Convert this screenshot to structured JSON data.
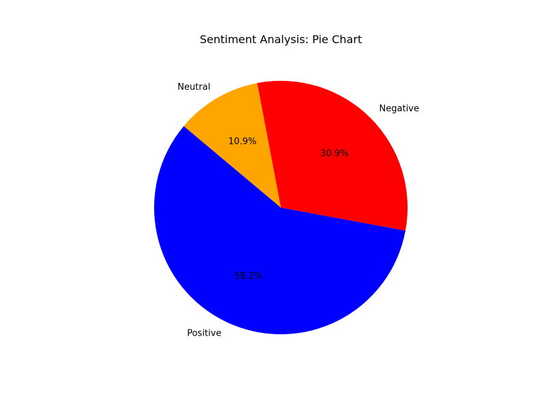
{
  "chart_data": {
    "type": "pie",
    "title": "Sentiment Analysis: Pie Chart",
    "slices": [
      {
        "label": "Positive",
        "value": 58.2,
        "percent_label": "58.2%",
        "color": "#0000ff"
      },
      {
        "label": "Negative",
        "value": 30.9,
        "percent_label": "30.9%",
        "color": "#ff0000"
      },
      {
        "label": "Neutral",
        "value": 10.9,
        "percent_label": "10.9%",
        "color": "#ffa500"
      }
    ],
    "start_angle_deg": 140,
    "direction": "counterclockwise",
    "legend": "none"
  }
}
